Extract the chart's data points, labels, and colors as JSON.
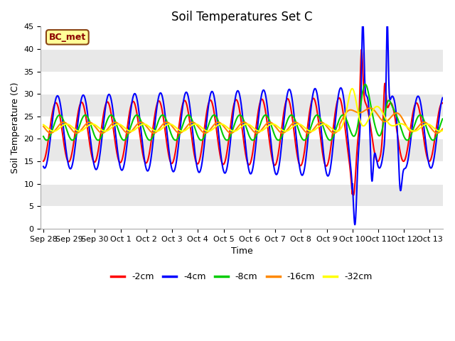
{
  "title": "Soil Temperatures Set C",
  "xlabel": "Time",
  "ylabel": "Soil Temperature (C)",
  "ylim": [
    0,
    45
  ],
  "annotation_text": "BC_met",
  "annotation_color": "#8B0000",
  "annotation_bg": "#FFFF99",
  "series": [
    {
      "label": "-2cm",
      "color": "#FF0000"
    },
    {
      "label": "-4cm",
      "color": "#0000FF"
    },
    {
      "label": "-8cm",
      "color": "#00CC00"
    },
    {
      "label": "-16cm",
      "color": "#FF8800"
    },
    {
      "label": "-32cm",
      "color": "#FFFF00"
    }
  ],
  "tick_labels": [
    "Sep 28",
    "Sep 29",
    "Sep 30",
    "Oct 1",
    "Oct 2",
    "Oct 3",
    "Oct 4",
    "Oct 5",
    "Oct 6",
    "Oct 7",
    "Oct 8",
    "Oct 9",
    "Oct 10",
    "Oct 11",
    "Oct 12",
    "Oct 13"
  ],
  "tick_positions": [
    0,
    1,
    2,
    3,
    4,
    5,
    6,
    7,
    8,
    9,
    10,
    11,
    12,
    13,
    14,
    15
  ],
  "band_colors": [
    "#FFFFFF",
    "#E8E8E8"
  ],
  "band_edges": [
    0,
    5,
    10,
    15,
    20,
    25,
    30,
    35,
    40,
    45
  ],
  "linewidth": 1.5
}
